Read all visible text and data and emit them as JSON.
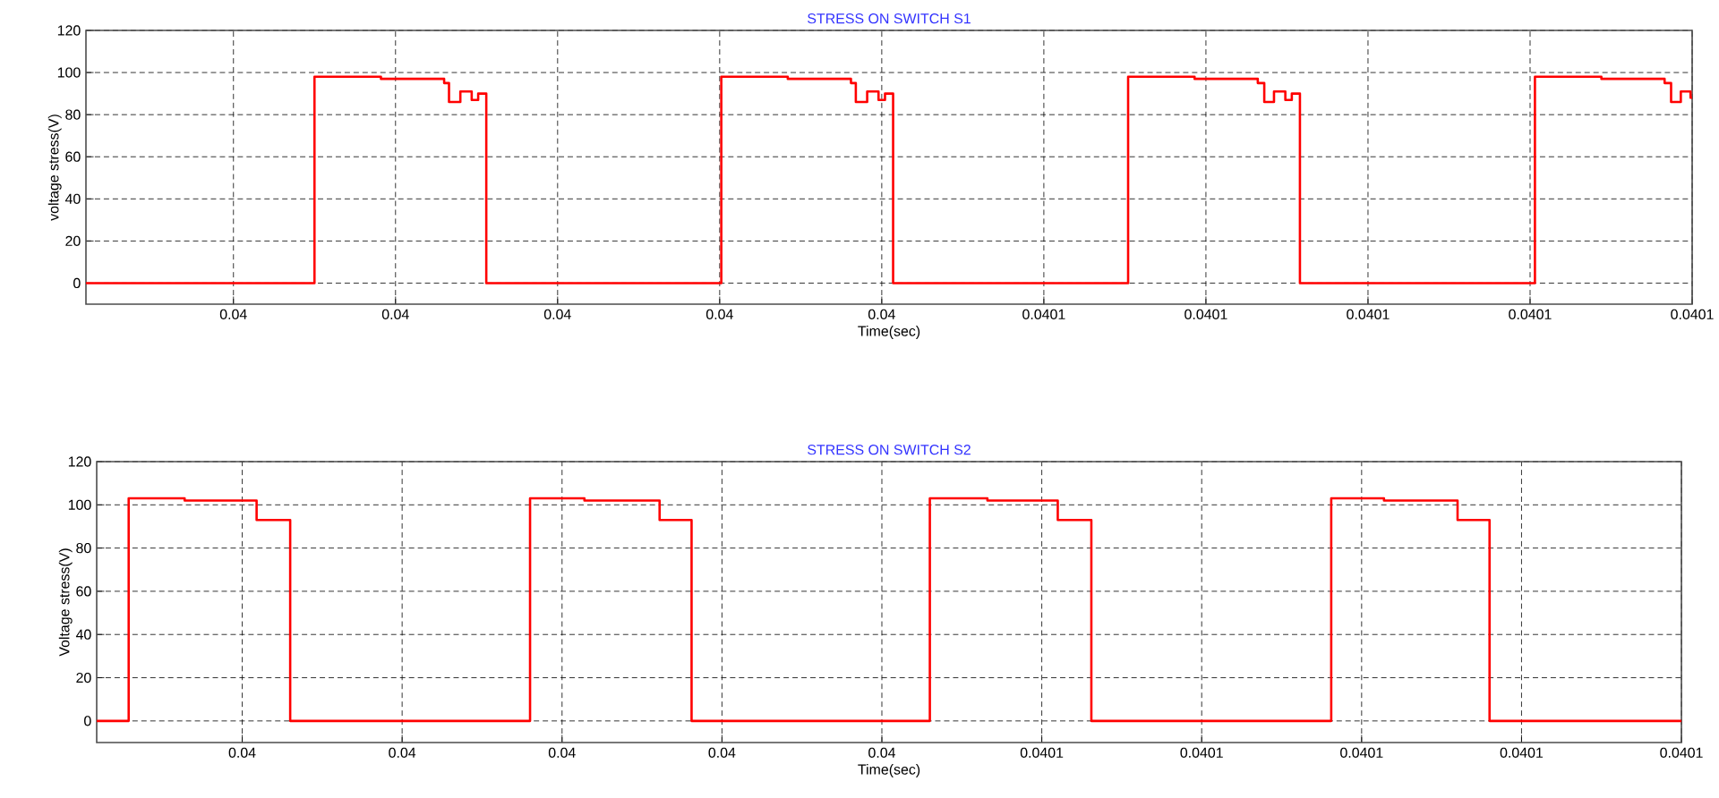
{
  "chart_data": [
    {
      "type": "step",
      "title": "STRESS ON SWITCH S1",
      "xlabel": "Time(sec)",
      "ylabel": "voltage stress(V)",
      "x": [
        0.0399909,
        0.040005,
        0.0400091,
        0.040013,
        0.0400133,
        0.040014,
        0.0400147,
        0.0400151,
        0.0400156,
        0.0400301,
        0.0400342,
        0.0400381,
        0.0400384,
        0.0400391,
        0.0400398,
        0.0400402,
        0.0400407,
        0.0400552,
        0.0400593,
        0.0400632,
        0.0400636,
        0.0400642,
        0.0400649,
        0.0400653,
        0.0400658,
        0.0400803,
        0.0400844,
        0.0400883,
        0.0400887,
        0.0400893,
        0.0400899,
        0.04009
      ],
      "series": [
        {
          "color": "#ff0000",
          "values": [
            0,
            98,
            97,
            95,
            86,
            91,
            87,
            90,
            0,
            98,
            97,
            95,
            86,
            91,
            87,
            90,
            0,
            98,
            97,
            95,
            86,
            91,
            87,
            90,
            0,
            98,
            97,
            95,
            86,
            91,
            88,
            88
          ]
        }
      ],
      "xlim": [
        0.0399909,
        0.04009
      ],
      "ylim": [
        -10,
        120
      ],
      "xticks": [
        {
          "value": 0.04,
          "label": "0.04"
        },
        {
          "value": 0.04001,
          "label": "0.04"
        },
        {
          "value": 0.04002,
          "label": "0.04"
        },
        {
          "value": 0.04003,
          "label": "0.04"
        },
        {
          "value": 0.04004,
          "label": "0.04"
        },
        {
          "value": 0.04005,
          "label": "0.0401"
        },
        {
          "value": 0.04006,
          "label": "0.0401"
        },
        {
          "value": 0.04007,
          "label": "0.0401"
        },
        {
          "value": 0.04008,
          "label": "0.0401"
        },
        {
          "value": 0.04009,
          "label": "0.0401"
        }
      ],
      "yticks": [
        0,
        20,
        40,
        60,
        80,
        100,
        120
      ],
      "grid": true
    },
    {
      "type": "step",
      "title": "STRESS ON SWITCH S2",
      "xlabel": "Time(sec)",
      "ylabel": "Voltage stress(V)",
      "x": [
        0.0399909,
        0.0399929,
        0.0399964,
        0.0400009,
        0.040003,
        0.040018,
        0.0400214,
        0.0400261,
        0.0400281,
        0.040043,
        0.0400466,
        0.040051,
        0.0400531,
        0.0400681,
        0.0400714,
        0.040076,
        0.040078,
        0.04009
      ],
      "series": [
        {
          "color": "#ff0000",
          "values": [
            0,
            103,
            102,
            93,
            0,
            103,
            102,
            93,
            0,
            103,
            102,
            93,
            0,
            103,
            102,
            93,
            0,
            0
          ]
        }
      ],
      "xlim": [
        0.0399909,
        0.04009
      ],
      "ylim": [
        -10,
        120
      ],
      "xticks": [
        {
          "value": 0.04,
          "label": "0.04"
        },
        {
          "value": 0.04001,
          "label": "0.04"
        },
        {
          "value": 0.04002,
          "label": "0.04"
        },
        {
          "value": 0.04003,
          "label": "0.04"
        },
        {
          "value": 0.04004,
          "label": "0.04"
        },
        {
          "value": 0.04005,
          "label": "0.0401"
        },
        {
          "value": 0.04006,
          "label": "0.0401"
        },
        {
          "value": 0.04007,
          "label": "0.0401"
        },
        {
          "value": 0.04008,
          "label": "0.0401"
        },
        {
          "value": 0.04009,
          "label": "0.0401"
        }
      ],
      "yticks": [
        0,
        20,
        40,
        60,
        80,
        100,
        120
      ],
      "grid": true
    }
  ]
}
